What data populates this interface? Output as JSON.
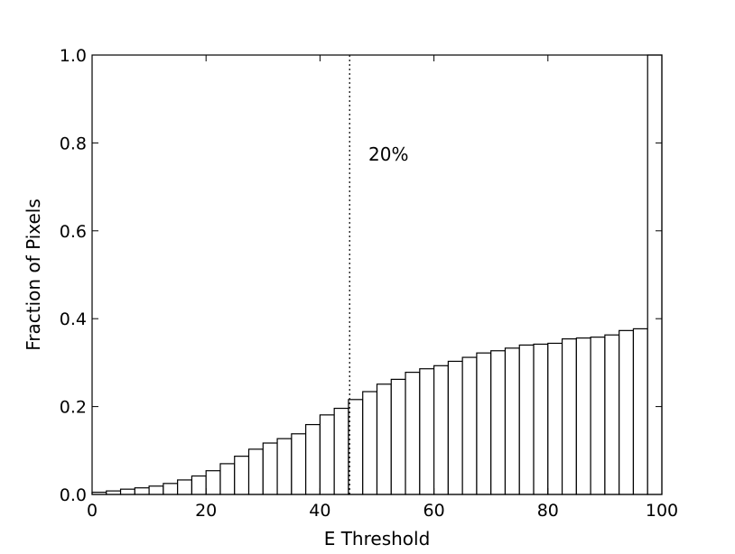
{
  "chart_data": {
    "type": "bar",
    "title": "",
    "xlabel": "E Threshold",
    "ylabel": "Fraction of Pixels",
    "xlim": [
      0,
      100
    ],
    "ylim": [
      0.0,
      1.0
    ],
    "x_ticks": [
      "0",
      "20",
      "40",
      "60",
      "80",
      "100"
    ],
    "y_ticks": [
      "0.0",
      "0.2",
      "0.4",
      "0.6",
      "0.8",
      "1.0"
    ],
    "grid": false,
    "bin_width": 2.5,
    "bins": [
      {
        "x": 0.0,
        "value": 0.005
      },
      {
        "x": 2.5,
        "value": 0.008
      },
      {
        "x": 5.0,
        "value": 0.012
      },
      {
        "x": 7.5,
        "value": 0.015
      },
      {
        "x": 10.0,
        "value": 0.019
      },
      {
        "x": 12.5,
        "value": 0.025
      },
      {
        "x": 15.0,
        "value": 0.033
      },
      {
        "x": 17.5,
        "value": 0.042
      },
      {
        "x": 20.0,
        "value": 0.054
      },
      {
        "x": 22.5,
        "value": 0.07
      },
      {
        "x": 25.0,
        "value": 0.087
      },
      {
        "x": 27.5,
        "value": 0.103
      },
      {
        "x": 30.0,
        "value": 0.117
      },
      {
        "x": 32.5,
        "value": 0.127
      },
      {
        "x": 35.0,
        "value": 0.138
      },
      {
        "x": 37.5,
        "value": 0.159
      },
      {
        "x": 40.0,
        "value": 0.181
      },
      {
        "x": 42.5,
        "value": 0.196
      },
      {
        "x": 45.0,
        "value": 0.216
      },
      {
        "x": 47.5,
        "value": 0.234
      },
      {
        "x": 50.0,
        "value": 0.251
      },
      {
        "x": 52.5,
        "value": 0.262
      },
      {
        "x": 55.0,
        "value": 0.278
      },
      {
        "x": 57.5,
        "value": 0.286
      },
      {
        "x": 60.0,
        "value": 0.293
      },
      {
        "x": 62.5,
        "value": 0.303
      },
      {
        "x": 65.0,
        "value": 0.312
      },
      {
        "x": 67.5,
        "value": 0.322
      },
      {
        "x": 70.0,
        "value": 0.327
      },
      {
        "x": 72.5,
        "value": 0.333
      },
      {
        "x": 75.0,
        "value": 0.34
      },
      {
        "x": 77.5,
        "value": 0.342
      },
      {
        "x": 80.0,
        "value": 0.344
      },
      {
        "x": 82.5,
        "value": 0.354
      },
      {
        "x": 85.0,
        "value": 0.356
      },
      {
        "x": 87.5,
        "value": 0.358
      },
      {
        "x": 90.0,
        "value": 0.363
      },
      {
        "x": 92.5,
        "value": 0.373
      },
      {
        "x": 95.0,
        "value": 0.377
      },
      {
        "x": 97.5,
        "value": 1.0
      }
    ],
    "vertical_line": {
      "x": 45.2,
      "style": "dotted"
    },
    "annotation": {
      "text": "20%",
      "x": 48.5,
      "y": 0.76
    }
  }
}
